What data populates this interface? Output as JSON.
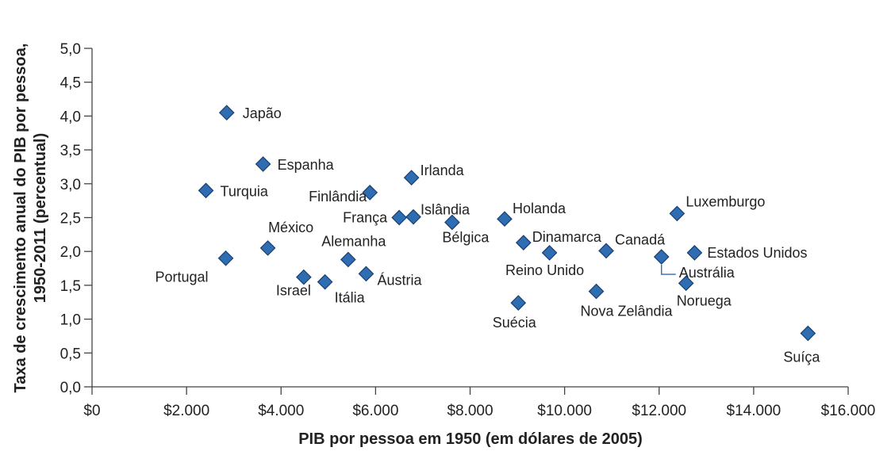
{
  "chart_data": {
    "type": "scatter",
    "xlabel": "PIB por pessoa em 1950 (em dólares de 2005)",
    "ylabel_line1": "Taxa de crescimento anual do PIB por pessoa,",
    "ylabel_line2": "1950-2011 (percentual)",
    "xlim": [
      0,
      16000
    ],
    "ylim": [
      0,
      5.0
    ],
    "x_ticks": [
      0,
      2000,
      4000,
      6000,
      8000,
      10000,
      12000,
      14000,
      16000
    ],
    "x_tick_labels": [
      "$0",
      "$2.000",
      "$4.000",
      "$6.000",
      "$8.000",
      "$10.000",
      "$12.000",
      "$14.000",
      "$16.000"
    ],
    "y_ticks": [
      0,
      0.5,
      1.0,
      1.5,
      2.0,
      2.5,
      3.0,
      3.5,
      4.0,
      4.5,
      5.0
    ],
    "y_tick_labels": [
      "0,0",
      "0,5",
      "1,0",
      "1,5",
      "2,0",
      "2,5",
      "3,0",
      "3,5",
      "4,0",
      "4,5",
      "5,0"
    ],
    "grid": false,
    "marker_color": "#2f6db3",
    "points": [
      {
        "label": "Japão",
        "x": 2850,
        "y": 4.05
      },
      {
        "label": "Espanha",
        "x": 3620,
        "y": 3.29
      },
      {
        "label": "Turquia",
        "x": 2410,
        "y": 2.9
      },
      {
        "label": "Irlanda",
        "x": 6760,
        "y": 3.09
      },
      {
        "label": "Finlândia",
        "x": 5880,
        "y": 2.87
      },
      {
        "label": "França",
        "x": 6500,
        "y": 2.5
      },
      {
        "label": "Islândia",
        "x": 6800,
        "y": 2.51
      },
      {
        "label": "Bélgica",
        "x": 7620,
        "y": 2.43
      },
      {
        "label": "Holanda",
        "x": 8730,
        "y": 2.48
      },
      {
        "label": "Luxemburgo",
        "x": 12380,
        "y": 2.56
      },
      {
        "label": "México",
        "x": 3720,
        "y": 2.05
      },
      {
        "label": "Portugal",
        "x": 2830,
        "y": 1.9
      },
      {
        "label": "Alemanha",
        "x": 5420,
        "y": 1.88
      },
      {
        "label": "Dinamarca",
        "x": 9130,
        "y": 2.13
      },
      {
        "label": "Reino Unido",
        "x": 9680,
        "y": 1.98
      },
      {
        "label": "Canadá",
        "x": 10880,
        "y": 2.01
      },
      {
        "label": "Austrália",
        "x": 12050,
        "y": 1.92
      },
      {
        "label": "Estados Unidos",
        "x": 12750,
        "y": 1.98
      },
      {
        "label": "Israel",
        "x": 4480,
        "y": 1.62
      },
      {
        "label": "Itália",
        "x": 4930,
        "y": 1.55
      },
      {
        "label": "Áustria",
        "x": 5800,
        "y": 1.67
      },
      {
        "label": "Nova Zelândia",
        "x": 10670,
        "y": 1.41
      },
      {
        "label": "Noruega",
        "x": 12570,
        "y": 1.53
      },
      {
        "label": "Suécia",
        "x": 9020,
        "y": 1.24
      },
      {
        "label": "Suíça",
        "x": 15150,
        "y": 0.79
      }
    ]
  }
}
